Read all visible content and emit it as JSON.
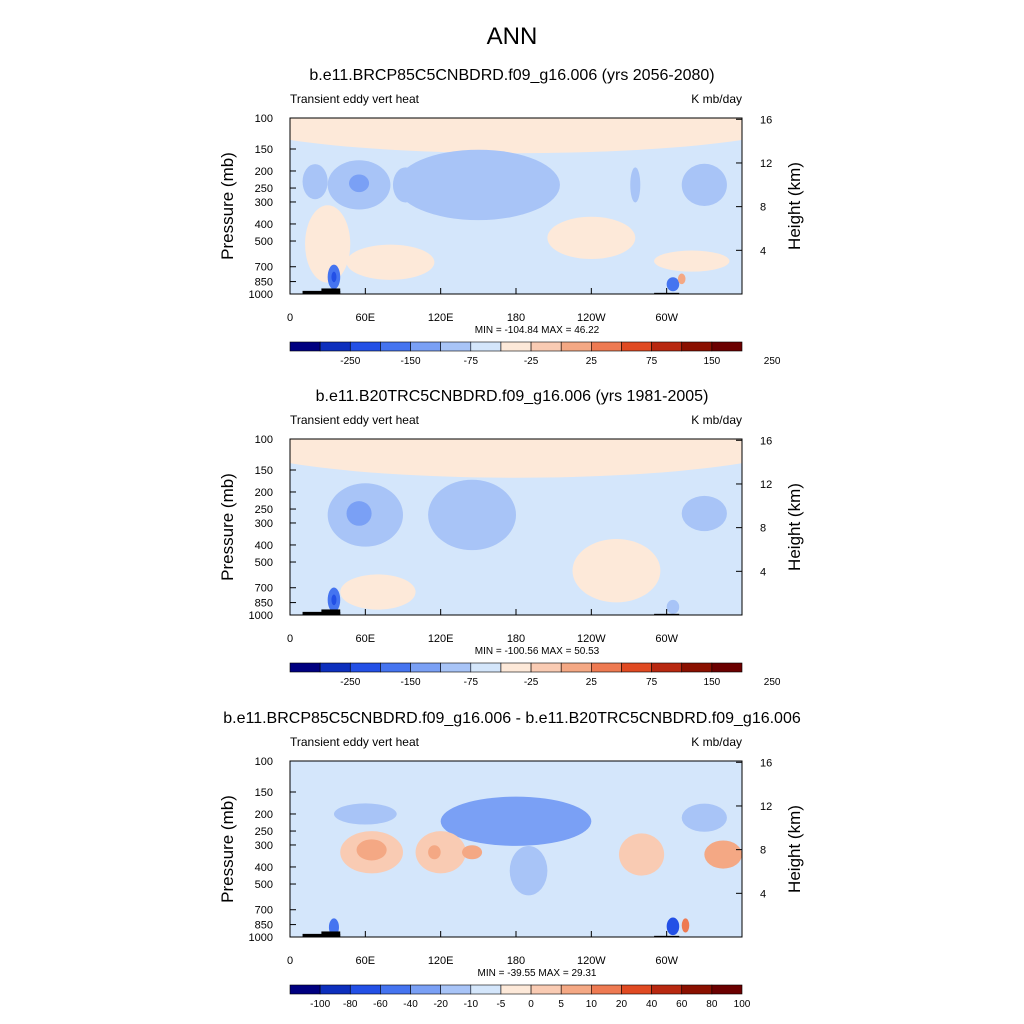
{
  "main_title": "ANN",
  "panels": [
    {
      "title": "b.e11.BRCP85C5CNBDRD.f09_g16.006 (yrs 2056-2080)",
      "left_label": "Transient eddy vert heat",
      "right_label": "K mb/day",
      "ylabel": "Pressure (mb)",
      "ylabel_right": "Height (km)",
      "stats": "MIN = -104.84  MAX =  46.22",
      "colorbar_labels": [
        "-250",
        "-150",
        "-75",
        "-25",
        "25",
        "75",
        "150",
        "250"
      ]
    },
    {
      "title": "b.e11.B20TRC5CNBDRD.f09_g16.006 (yrs 1981-2005)",
      "left_label": "Transient eddy vert heat",
      "right_label": "K mb/day",
      "ylabel": "Pressure (mb)",
      "ylabel_right": "Height (km)",
      "stats": "MIN = -100.56  MAX =  50.53",
      "colorbar_labels": [
        "-250",
        "-150",
        "-75",
        "-25",
        "25",
        "75",
        "150",
        "250"
      ]
    },
    {
      "title": "b.e11.BRCP85C5CNBDRD.f09_g16.006 - b.e11.B20TRC5CNBDRD.f09_g16.006",
      "left_label": "Transient eddy vert heat",
      "right_label": "K mb/day",
      "ylabel": "Pressure (mb)",
      "ylabel_right": "Height (km)",
      "stats": "MIN = -39.55  MAX =  29.31",
      "colorbar_labels": [
        "-100",
        "-80",
        "-60",
        "-40",
        "-20",
        "-10",
        "-5",
        "0",
        "5",
        "10",
        "20",
        "40",
        "60",
        "80",
        "100"
      ]
    }
  ],
  "chart_data": {
    "type": "heatmap",
    "x_ticks": [
      "0",
      "60E",
      "120E",
      "180",
      "120W",
      "60W"
    ],
    "x_tick_values": [
      0,
      60,
      120,
      180,
      240,
      300
    ],
    "xlim": [
      0,
      360
    ],
    "y_ticks": [
      "100",
      "150",
      "200",
      "250",
      "300",
      "400",
      "500",
      "700",
      "850",
      "1000"
    ],
    "y_tick_values": [
      100,
      150,
      200,
      250,
      300,
      400,
      500,
      700,
      850,
      1000
    ],
    "ylim": [
      1000,
      100
    ],
    "y_scale": "log",
    "height_ticks": [
      "4",
      "8",
      "12",
      "16"
    ],
    "height_tick_values": [
      4,
      8,
      12,
      16
    ],
    "colors": [
      "#000080",
      "#0d2fbd",
      "#2350e6",
      "#4574f0",
      "#7aa0f5",
      "#a8c4f7",
      "#d4e6fb",
      "#fde9d9",
      "#f9cbb3",
      "#f4a884",
      "#ee7a52",
      "#e04a22",
      "#b82810",
      "#8a1000",
      "#6b0000"
    ],
    "panel_fields": [
      {
        "background": "#d4e6fb",
        "blobs": [
          {
            "lon": 180,
            "p": 100,
            "rx": 230,
            "ry_dec": 0.2,
            "color": "#fde9d9"
          },
          {
            "lon": 20,
            "p": 230,
            "rx": 10,
            "ry_dec": 0.1,
            "color": "#a8c4f7"
          },
          {
            "lon": 55,
            "p": 240,
            "rx": 25,
            "ry_dec": 0.14,
            "color": "#a8c4f7"
          },
          {
            "lon": 55,
            "p": 235,
            "rx": 8,
            "ry_dec": 0.05,
            "color": "#7aa0f5"
          },
          {
            "lon": 92,
            "p": 240,
            "rx": 10,
            "ry_dec": 0.1,
            "color": "#a8c4f7"
          },
          {
            "lon": 150,
            "p": 240,
            "rx": 65,
            "ry_dec": 0.2,
            "color": "#a8c4f7"
          },
          {
            "lon": 275,
            "p": 240,
            "rx": 4,
            "ry_dec": 0.1,
            "color": "#a8c4f7"
          },
          {
            "lon": 330,
            "p": 240,
            "rx": 18,
            "ry_dec": 0.12,
            "color": "#a8c4f7"
          },
          {
            "lon": 30,
            "p": 520,
            "rx": 18,
            "ry_dec": 0.22,
            "color": "#fde9d9"
          },
          {
            "lon": 80,
            "p": 660,
            "rx": 35,
            "ry_dec": 0.1,
            "color": "#fde9d9"
          },
          {
            "lon": 240,
            "p": 480,
            "rx": 35,
            "ry_dec": 0.12,
            "color": "#fde9d9"
          },
          {
            "lon": 320,
            "p": 650,
            "rx": 30,
            "ry_dec": 0.06,
            "color": "#fde9d9"
          },
          {
            "lon": 35,
            "p": 800,
            "rx": 5,
            "ry_dec": 0.07,
            "color": "#4574f0"
          },
          {
            "lon": 35,
            "p": 800,
            "rx": 2,
            "ry_dec": 0.03,
            "color": "#2350e6"
          },
          {
            "lon": 305,
            "p": 880,
            "rx": 5,
            "ry_dec": 0.04,
            "color": "#4574f0"
          },
          {
            "lon": 312,
            "p": 820,
            "rx": 3,
            "ry_dec": 0.03,
            "color": "#f4a884"
          }
        ],
        "topography": [
          {
            "lon0": 10,
            "lon1": 40,
            "p": 960
          },
          {
            "lon0": 25,
            "lon1": 40,
            "p": 930
          },
          {
            "lon0": 290,
            "lon1": 310,
            "p": 985
          }
        ]
      },
      {
        "background": "#d4e6fb",
        "blobs": [
          {
            "lon": 180,
            "p": 100,
            "rx": 230,
            "ry_dec": 0.22,
            "color": "#fde9d9"
          },
          {
            "lon": 60,
            "p": 270,
            "rx": 30,
            "ry_dec": 0.18,
            "color": "#a8c4f7"
          },
          {
            "lon": 55,
            "p": 265,
            "rx": 10,
            "ry_dec": 0.07,
            "color": "#7aa0f5"
          },
          {
            "lon": 145,
            "p": 270,
            "rx": 35,
            "ry_dec": 0.2,
            "color": "#a8c4f7"
          },
          {
            "lon": 330,
            "p": 265,
            "rx": 18,
            "ry_dec": 0.1,
            "color": "#a8c4f7"
          },
          {
            "lon": 260,
            "p": 560,
            "rx": 35,
            "ry_dec": 0.18,
            "color": "#fde9d9"
          },
          {
            "lon": 70,
            "p": 740,
            "rx": 30,
            "ry_dec": 0.1,
            "color": "#fde9d9"
          },
          {
            "lon": 35,
            "p": 820,
            "rx": 5,
            "ry_dec": 0.07,
            "color": "#4574f0"
          },
          {
            "lon": 35,
            "p": 820,
            "rx": 2,
            "ry_dec": 0.03,
            "color": "#2350e6"
          },
          {
            "lon": 305,
            "p": 900,
            "rx": 5,
            "ry_dec": 0.04,
            "color": "#a8c4f7"
          }
        ],
        "topography": [
          {
            "lon0": 10,
            "lon1": 40,
            "p": 960
          },
          {
            "lon0": 25,
            "lon1": 40,
            "p": 930
          },
          {
            "lon0": 290,
            "lon1": 310,
            "p": 985
          }
        ]
      },
      {
        "background": "#d4e6fb",
        "blobs": [
          {
            "lon": 60,
            "p": 200,
            "rx": 25,
            "ry_dec": 0.06,
            "color": "#a8c4f7"
          },
          {
            "lon": 180,
            "p": 220,
            "rx": 60,
            "ry_dec": 0.14,
            "color": "#7aa0f5"
          },
          {
            "lon": 190,
            "p": 420,
            "rx": 15,
            "ry_dec": 0.14,
            "color": "#a8c4f7"
          },
          {
            "lon": 330,
            "p": 210,
            "rx": 18,
            "ry_dec": 0.08,
            "color": "#a8c4f7"
          },
          {
            "lon": 65,
            "p": 330,
            "rx": 25,
            "ry_dec": 0.12,
            "color": "#f9cbb3"
          },
          {
            "lon": 65,
            "p": 320,
            "rx": 12,
            "ry_dec": 0.06,
            "color": "#f4a884"
          },
          {
            "lon": 120,
            "p": 330,
            "rx": 20,
            "ry_dec": 0.12,
            "color": "#f9cbb3"
          },
          {
            "lon": 115,
            "p": 330,
            "rx": 5,
            "ry_dec": 0.04,
            "color": "#f4a884"
          },
          {
            "lon": 145,
            "p": 330,
            "rx": 8,
            "ry_dec": 0.04,
            "color": "#f4a884"
          },
          {
            "lon": 280,
            "p": 340,
            "rx": 18,
            "ry_dec": 0.12,
            "color": "#f9cbb3"
          },
          {
            "lon": 345,
            "p": 340,
            "rx": 15,
            "ry_dec": 0.08,
            "color": "#f4a884"
          },
          {
            "lon": 35,
            "p": 880,
            "rx": 4,
            "ry_dec": 0.05,
            "color": "#4574f0"
          },
          {
            "lon": 305,
            "p": 870,
            "rx": 5,
            "ry_dec": 0.05,
            "color": "#2350e6"
          },
          {
            "lon": 315,
            "p": 860,
            "rx": 3,
            "ry_dec": 0.04,
            "color": "#ee7a52"
          }
        ],
        "topography": [
          {
            "lon0": 10,
            "lon1": 40,
            "p": 960
          },
          {
            "lon0": 25,
            "lon1": 40,
            "p": 930
          },
          {
            "lon0": 290,
            "lon1": 310,
            "p": 985
          }
        ]
      }
    ]
  }
}
